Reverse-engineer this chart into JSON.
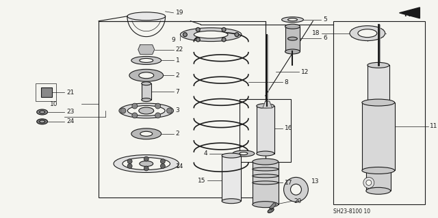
{
  "bg_color": "#f5f5f0",
  "line_color": "#1a1a1a",
  "footer_code": "SH23-8100 10",
  "fr_label": "FR.",
  "fig_width": 6.4,
  "fig_height": 3.19,
  "dpi": 100
}
